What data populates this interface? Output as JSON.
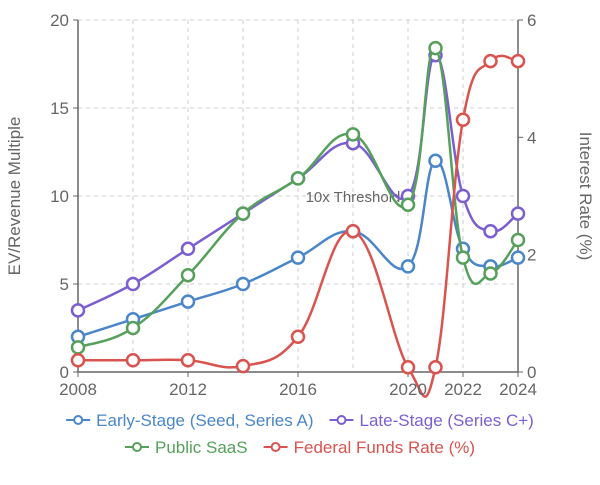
{
  "chart_data": {
    "type": "line",
    "x": [
      2008,
      2010,
      2012,
      2014,
      2016,
      2018,
      2020,
      2022,
      2024
    ],
    "x_ticks": [
      "2008",
      "2012",
      "2016",
      "2020",
      "2022",
      "2024"
    ],
    "ylabel": "EV/Revenue Multiple",
    "y2label": "Interest Rate (%)",
    "ylim": [
      0,
      20
    ],
    "y_ticks": [
      "0",
      "5",
      "10",
      "15",
      "20"
    ],
    "y2lim": [
      0,
      6
    ],
    "y2_ticks": [
      "0",
      "2",
      "4",
      "6"
    ],
    "grid": true,
    "legend_position": "bottom",
    "annotation": {
      "text": "10x Threshold",
      "y": 10
    },
    "series": [
      {
        "name": "Early-Stage (Seed, Series A)",
        "axis": "left",
        "color": "#4a86c8",
        "points": [
          [
            2008,
            2
          ],
          [
            2010,
            3
          ],
          [
            2012,
            4
          ],
          [
            2014,
            5
          ],
          [
            2016,
            6.5
          ],
          [
            2018,
            8
          ],
          [
            2020,
            6
          ],
          [
            2021,
            12
          ],
          [
            2022,
            7
          ],
          [
            2023,
            6
          ],
          [
            2024,
            6.5
          ]
        ]
      },
      {
        "name": "Late-Stage (Series C+)",
        "axis": "left",
        "color": "#7b5fd0",
        "points": [
          [
            2008,
            3.5
          ],
          [
            2010,
            5
          ],
          [
            2012,
            7
          ],
          [
            2014,
            9
          ],
          [
            2016,
            11
          ],
          [
            2018,
            13
          ],
          [
            2020,
            10
          ],
          [
            2021,
            18
          ],
          [
            2022,
            10
          ],
          [
            2023,
            8
          ],
          [
            2024,
            9
          ]
        ]
      },
      {
        "name": "Public SaaS",
        "axis": "left",
        "color": "#56a05c",
        "points": [
          [
            2008,
            1.4
          ],
          [
            2010,
            2.5
          ],
          [
            2012,
            5.5
          ],
          [
            2014,
            9
          ],
          [
            2016,
            11
          ],
          [
            2018,
            13.5
          ],
          [
            2020,
            9.5
          ],
          [
            2021,
            18.4
          ],
          [
            2022,
            6.5
          ],
          [
            2023,
            5.6
          ],
          [
            2024,
            7.5
          ]
        ]
      },
      {
        "name": "Federal Funds Rate (%)",
        "axis": "right",
        "color": "#d9534f",
        "points": [
          [
            2008,
            0.2
          ],
          [
            2010,
            0.2
          ],
          [
            2012,
            0.2
          ],
          [
            2014,
            0.1
          ],
          [
            2016,
            0.6
          ],
          [
            2018,
            2.4
          ],
          [
            2020,
            0.08
          ],
          [
            2021,
            0.08
          ],
          [
            2022,
            4.3
          ],
          [
            2023,
            5.3
          ],
          [
            2024,
            5.3
          ]
        ]
      }
    ]
  }
}
